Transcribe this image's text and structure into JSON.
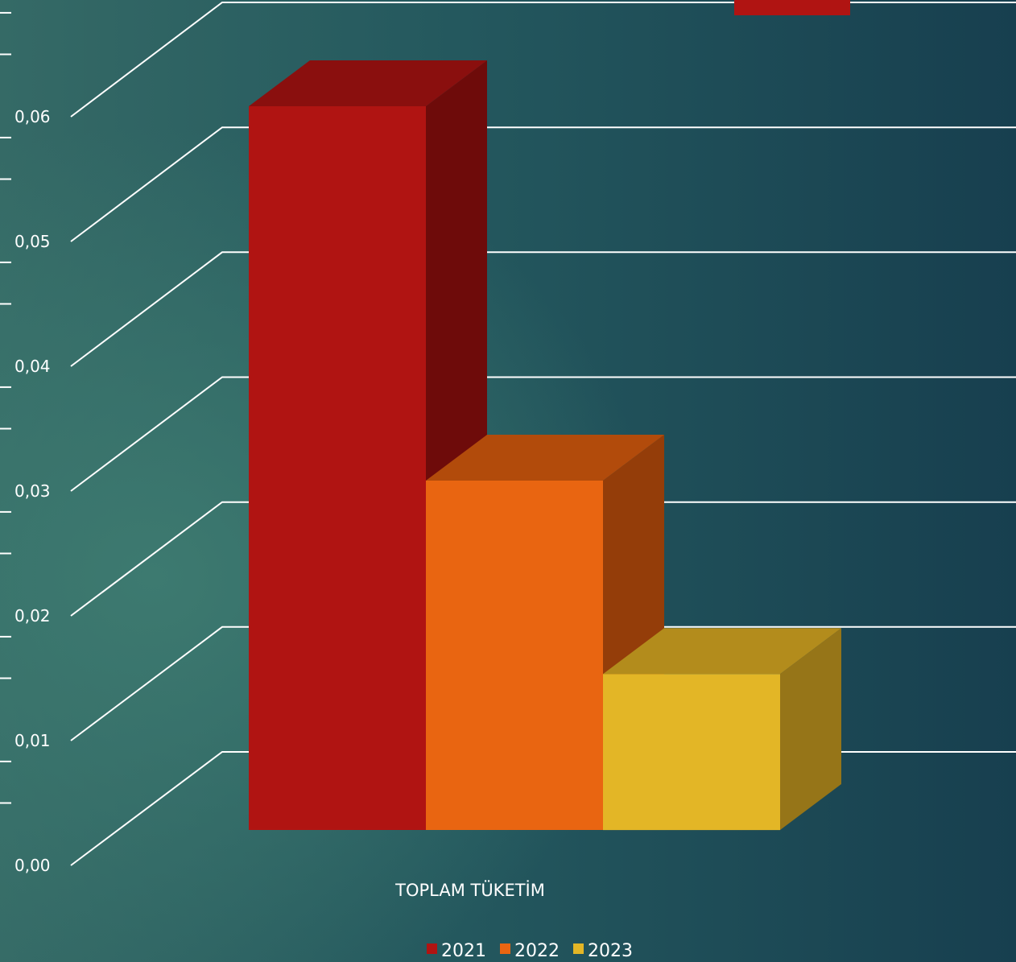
{
  "chart_data": {
    "type": "bar",
    "categories": [
      "TOPLAM TÜKETİM"
    ],
    "series": [
      {
        "name": "2021",
        "values": [
          0.058
        ],
        "color": "#b01412",
        "top": "#8a0f0e",
        "side": "#6e0b0a"
      },
      {
        "name": "2022",
        "values": [
          0.028
        ],
        "color": "#e96511",
        "top": "#b24b0b",
        "side": "#943d09"
      },
      {
        "name": "2023",
        "values": [
          0.0125
        ],
        "color": "#e3b626",
        "top": "#b38c1c",
        "side": "#967518"
      }
    ],
    "y_ticks": [
      "0,00",
      "0,01",
      "0,02",
      "0,03",
      "0,04",
      "0,05",
      "0,06"
    ],
    "ylim": [
      0,
      0.06
    ],
    "grid": true,
    "legend": "bottom",
    "three_d": true
  }
}
